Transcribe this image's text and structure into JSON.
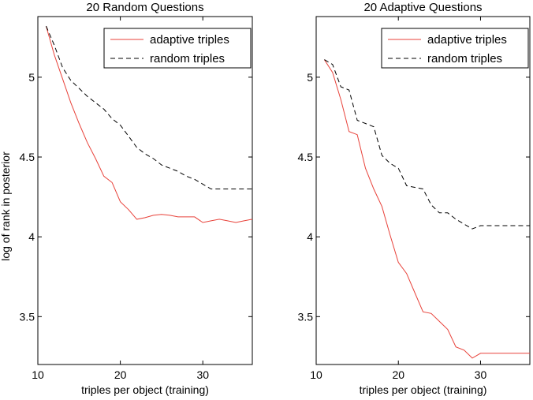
{
  "chart_data": [
    {
      "type": "line",
      "title": "20 Random Questions",
      "xlabel": "triples per object (training)",
      "ylabel": "log of rank in posterior",
      "xlim": [
        10,
        36
      ],
      "ylim": [
        3.2,
        5.38
      ],
      "xticks": [
        10,
        20,
        30
      ],
      "yticks": [
        3.5,
        4,
        4.5,
        5
      ],
      "legend_position": "top-right",
      "series": [
        {
          "name": "adaptive triples",
          "color": "#e8423a",
          "style": "solid",
          "x": [
            11,
            12,
            13,
            14,
            15,
            16,
            17,
            18,
            19,
            20,
            21,
            22,
            23,
            24,
            25,
            26,
            27,
            28,
            29,
            30,
            31,
            32,
            33,
            34,
            35,
            36
          ],
          "y": [
            5.32,
            5.14,
            4.99,
            4.84,
            4.71,
            4.59,
            4.49,
            4.38,
            4.34,
            4.22,
            4.17,
            4.11,
            4.12,
            4.135,
            4.14,
            4.135,
            4.125,
            4.125,
            4.125,
            4.09,
            4.1,
            4.11,
            4.1,
            4.09,
            4.1,
            4.11
          ]
        },
        {
          "name": "random triples",
          "color": "#000000",
          "style": "dashed",
          "x": [
            11,
            12,
            13,
            14,
            15,
            16,
            17,
            18,
            19,
            20,
            21,
            22,
            23,
            24,
            25,
            26,
            27,
            28,
            29,
            30,
            31,
            32,
            33,
            34,
            35,
            36
          ],
          "y": [
            5.32,
            5.2,
            5.06,
            4.98,
            4.93,
            4.88,
            4.84,
            4.8,
            4.74,
            4.7,
            4.63,
            4.56,
            4.52,
            4.49,
            4.45,
            4.43,
            4.41,
            4.38,
            4.36,
            4.33,
            4.3,
            4.3,
            4.3,
            4.3,
            4.3,
            4.3
          ]
        }
      ]
    },
    {
      "type": "line",
      "title": "20 Adaptive Questions",
      "xlabel": "triples per object (training)",
      "ylabel": "",
      "xlim": [
        10,
        36
      ],
      "ylim": [
        3.2,
        5.38
      ],
      "xticks": [
        10,
        20,
        30
      ],
      "yticks": [
        3.5,
        4,
        4.5,
        5
      ],
      "legend_position": "top-right",
      "series": [
        {
          "name": "adaptive triples",
          "color": "#e8423a",
          "style": "solid",
          "x": [
            11,
            12,
            13,
            14,
            15,
            16,
            17,
            18,
            19,
            20,
            21,
            22,
            23,
            24,
            25,
            26,
            27,
            28,
            29,
            30,
            31,
            32,
            33,
            34,
            35,
            36
          ],
          "y": [
            5.11,
            5.03,
            4.86,
            4.66,
            4.64,
            4.43,
            4.3,
            4.19,
            4.01,
            3.84,
            3.77,
            3.65,
            3.53,
            3.52,
            3.47,
            3.42,
            3.31,
            3.29,
            3.24,
            3.27,
            3.27,
            3.27,
            3.27,
            3.27,
            3.27,
            3.27
          ]
        },
        {
          "name": "random triples",
          "color": "#000000",
          "style": "dashed",
          "x": [
            11,
            12,
            13,
            14,
            15,
            16,
            17,
            18,
            19,
            20,
            21,
            22,
            23,
            24,
            25,
            26,
            27,
            28,
            29,
            30,
            31,
            32,
            33,
            34,
            35,
            36
          ],
          "y": [
            5.11,
            5.08,
            4.94,
            4.92,
            4.73,
            4.71,
            4.69,
            4.51,
            4.46,
            4.43,
            4.32,
            4.31,
            4.3,
            4.2,
            4.15,
            4.15,
            4.11,
            4.08,
            4.05,
            4.07,
            4.07,
            4.07,
            4.07,
            4.07,
            4.07,
            4.07
          ]
        }
      ]
    }
  ]
}
